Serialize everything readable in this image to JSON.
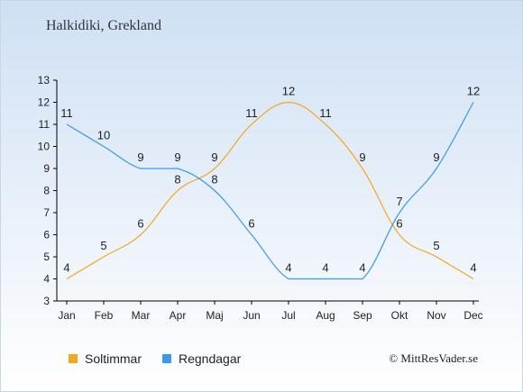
{
  "chart_data": {
    "type": "line",
    "title": "Halkidiki, Grekland",
    "categories": [
      "Jan",
      "Feb",
      "Mar",
      "Apr",
      "Maj",
      "Jun",
      "Jul",
      "Aug",
      "Sep",
      "Okt",
      "Nov",
      "Dec"
    ],
    "ylim": [
      3,
      13
    ],
    "yticks": [
      3,
      4,
      5,
      6,
      7,
      8,
      9,
      10,
      11,
      12,
      13
    ],
    "grid": false,
    "legend_position": "bottom-left",
    "series": [
      {
        "name": "Soltimmar",
        "color": "#f5a623",
        "values": [
          4,
          5,
          6,
          8,
          9,
          11,
          12,
          11,
          9,
          6,
          5,
          4
        ]
      },
      {
        "name": "Regndagar",
        "color": "#3a9ae6",
        "values": [
          11,
          10,
          9,
          9,
          8,
          6,
          4,
          4,
          4,
          7,
          9,
          12
        ]
      }
    ]
  },
  "copyright": "© MittResVader.se"
}
